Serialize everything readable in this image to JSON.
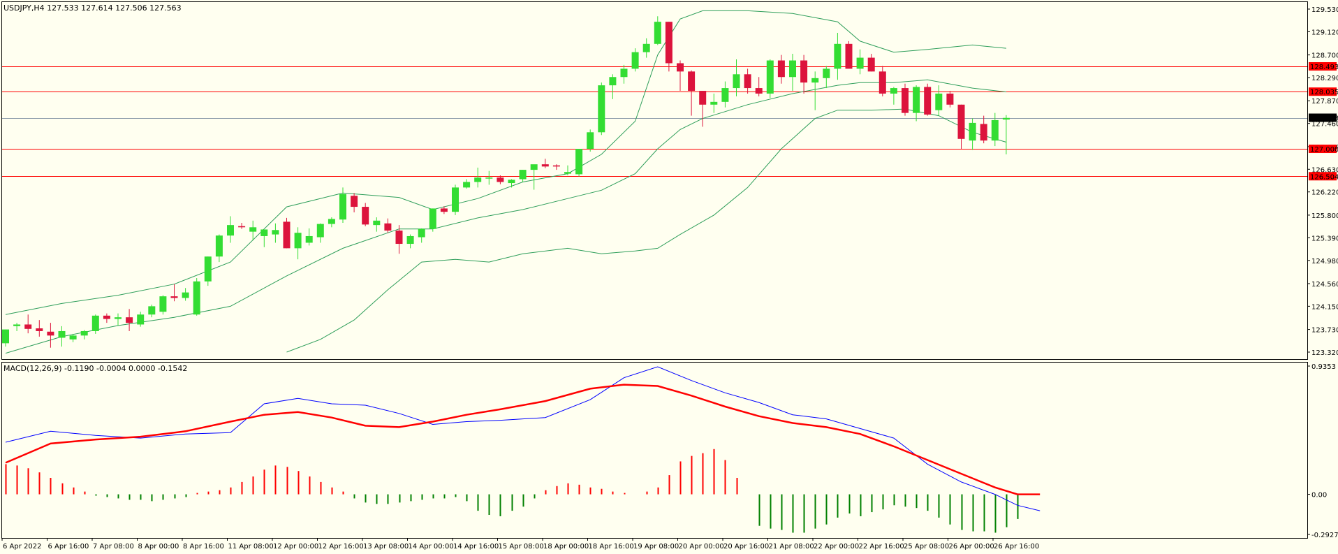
{
  "header": {
    "title": "USDJPY,H4  127.533 127.614 127.506 127.563"
  },
  "macd_header": {
    "title": "MACD(12,26,9) -0.1190 -0.0004 0.0000 -0.1542"
  },
  "colors": {
    "background": "#fffff0",
    "bull_candle": "#33dd33",
    "bear_candle": "#dc143c",
    "bollinger": "#2e9e5a",
    "level_line": "#ff0000",
    "level_tag_bg": "#ff0000",
    "current_tag_bg": "#000000",
    "macd_line": "#0000ff",
    "signal_line": "#ff0000",
    "hist_pos": "#ff0000",
    "hist_neg": "#008000"
  },
  "chart_data": [
    {
      "type": "candlestick",
      "symbol": "USDJPY",
      "timeframe": "H4",
      "ylim": [
        123.32,
        129.53
      ],
      "price_ticks": [
        "129.530",
        "129.120",
        "128.700",
        "128.290",
        "127.870",
        "127.460",
        "127.040",
        "126.630",
        "126.220",
        "125.800",
        "125.390",
        "124.980",
        "124.560",
        "124.150",
        "123.730",
        "123.320"
      ],
      "levels": [
        {
          "price": 128.493,
          "label": "128.493"
        },
        {
          "price": 128.035,
          "label": "128.035"
        },
        {
          "price": 127.0,
          "label": "127.000"
        },
        {
          "price": 126.504,
          "label": "126.504"
        }
      ],
      "current_price": {
        "price": 127.563,
        "label": "127.563"
      },
      "time_labels": [
        "6 Apr 2022",
        "6 Apr 16:00",
        "7 Apr 08:00",
        "8 Apr 00:00",
        "8 Apr 16:00",
        "11 Apr 08:00",
        "12 Apr 00:00",
        "12 Apr 16:00",
        "13 Apr 08:00",
        "14 Apr 00:00",
        "14 Apr 16:00",
        "15 Apr 08:00",
        "18 Apr 00:00",
        "18 Apr 16:00",
        "19 Apr 08:00",
        "20 Apr 00:00",
        "20 Apr 16:00",
        "21 Apr 08:00",
        "22 Apr 00:00",
        "22 Apr 16:00",
        "25 Apr 08:00",
        "26 Apr 00:00",
        "26 Apr 16:00"
      ],
      "candles": [
        [
          123.48,
          123.73,
          123.42,
          123.73
        ],
        [
          123.79,
          123.85,
          123.7,
          123.82
        ],
        [
          123.82,
          124.0,
          123.66,
          123.74
        ],
        [
          123.75,
          123.9,
          123.6,
          123.7
        ],
        [
          123.69,
          123.85,
          123.4,
          123.62
        ],
        [
          123.58,
          123.79,
          123.42,
          123.7
        ],
        [
          123.55,
          123.65,
          123.5,
          123.62
        ],
        [
          123.62,
          123.72,
          123.55,
          123.7
        ],
        [
          123.7,
          124.0,
          123.65,
          123.98
        ],
        [
          123.98,
          124.02,
          123.85,
          123.92
        ],
        [
          123.92,
          124.02,
          123.8,
          123.95
        ],
        [
          123.95,
          124.1,
          123.7,
          123.85
        ],
        [
          123.82,
          124.05,
          123.78,
          124.0
        ],
        [
          124.0,
          124.18,
          123.95,
          124.15
        ],
        [
          124.05,
          124.35,
          124.0,
          124.33
        ],
        [
          124.33,
          124.55,
          124.24,
          124.3
        ],
        [
          124.3,
          124.48,
          124.25,
          124.4
        ],
        [
          124.0,
          124.66,
          123.98,
          124.6
        ],
        [
          124.6,
          125.05,
          124.52,
          125.05
        ],
        [
          125.05,
          125.45,
          124.95,
          125.43
        ],
        [
          125.43,
          125.78,
          125.3,
          125.62
        ],
        [
          125.6,
          125.66,
          125.55,
          125.58
        ],
        [
          125.5,
          125.7,
          125.35,
          125.58
        ],
        [
          125.42,
          125.54,
          125.22,
          125.54
        ],
        [
          125.45,
          125.65,
          125.3,
          125.53
        ],
        [
          125.68,
          125.75,
          125.2,
          125.2
        ],
        [
          125.2,
          125.58,
          125.0,
          125.48
        ],
        [
          125.3,
          125.56,
          125.25,
          125.42
        ],
        [
          125.4,
          125.65,
          125.3,
          125.64
        ],
        [
          125.64,
          125.76,
          125.58,
          125.73
        ],
        [
          125.72,
          126.3,
          125.66,
          126.18
        ],
        [
          126.15,
          126.2,
          125.85,
          125.95
        ],
        [
          125.95,
          126.02,
          125.6,
          125.63
        ],
        [
          125.62,
          125.76,
          125.5,
          125.7
        ],
        [
          125.65,
          125.74,
          125.48,
          125.52
        ],
        [
          125.52,
          125.62,
          125.1,
          125.28
        ],
        [
          125.28,
          125.45,
          125.2,
          125.42
        ],
        [
          125.4,
          125.56,
          125.3,
          125.55
        ],
        [
          125.55,
          125.92,
          125.5,
          125.92
        ],
        [
          125.92,
          125.96,
          125.82,
          125.86
        ],
        [
          125.86,
          126.35,
          125.8,
          126.3
        ],
        [
          126.3,
          126.45,
          126.28,
          126.4
        ],
        [
          126.4,
          126.66,
          126.3,
          126.48
        ],
        [
          126.48,
          126.6,
          126.35,
          126.48
        ],
        [
          126.48,
          126.52,
          126.36,
          126.4
        ],
        [
          126.38,
          126.45,
          126.3,
          126.44
        ],
        [
          126.45,
          126.62,
          126.4,
          126.62
        ],
        [
          126.62,
          126.7,
          126.26,
          126.72
        ],
        [
          126.72,
          126.82,
          126.65,
          126.68
        ],
        [
          126.7,
          126.72,
          126.62,
          126.68
        ],
        [
          126.55,
          126.7,
          126.52,
          126.58
        ],
        [
          126.54,
          127.0,
          126.5,
          127.0
        ],
        [
          127.0,
          127.35,
          126.95,
          127.3
        ],
        [
          127.3,
          128.2,
          127.25,
          128.15
        ],
        [
          128.15,
          128.35,
          127.9,
          128.3
        ],
        [
          128.3,
          128.52,
          128.18,
          128.45
        ],
        [
          128.45,
          128.82,
          128.4,
          128.75
        ],
        [
          128.75,
          129.0,
          128.65,
          128.9
        ],
        [
          128.9,
          129.4,
          128.88,
          129.3
        ],
        [
          129.3,
          129.3,
          128.4,
          128.55
        ],
        [
          128.55,
          128.6,
          128.05,
          128.4
        ],
        [
          128.4,
          128.42,
          127.6,
          128.05
        ],
        [
          128.05,
          128.05,
          127.4,
          127.8
        ],
        [
          127.8,
          128.0,
          127.65,
          127.85
        ],
        [
          127.85,
          128.22,
          127.75,
          128.1
        ],
        [
          128.1,
          128.62,
          127.95,
          128.35
        ],
        [
          128.35,
          128.45,
          128.0,
          128.1
        ],
        [
          128.1,
          128.3,
          127.95,
          128.0
        ],
        [
          128.0,
          128.62,
          127.92,
          128.6
        ],
        [
          128.6,
          128.7,
          128.18,
          128.3
        ],
        [
          128.3,
          128.72,
          128.05,
          128.6
        ],
        [
          128.6,
          128.7,
          128.0,
          128.2
        ],
        [
          128.2,
          128.4,
          127.7,
          128.28
        ],
        [
          128.28,
          128.5,
          128.1,
          128.45
        ],
        [
          128.45,
          129.1,
          128.25,
          128.9
        ],
        [
          128.9,
          128.95,
          128.48,
          128.45
        ],
        [
          128.45,
          128.8,
          128.35,
          128.65
        ],
        [
          128.65,
          128.72,
          128.4,
          128.4
        ],
        [
          128.4,
          128.5,
          127.95,
          128.0
        ],
        [
          128.0,
          128.12,
          127.8,
          128.1
        ],
        [
          128.1,
          128.18,
          127.6,
          127.65
        ],
        [
          127.65,
          128.15,
          127.5,
          128.12
        ],
        [
          128.12,
          128.18,
          127.6,
          127.62
        ],
        [
          127.7,
          128.15,
          127.6,
          128.0
        ],
        [
          128.0,
          128.05,
          127.75,
          127.8
        ],
        [
          127.8,
          127.8,
          127.0,
          127.18
        ],
        [
          127.15,
          127.55,
          126.98,
          127.47
        ],
        [
          127.45,
          127.6,
          127.1,
          127.15
        ],
        [
          127.15,
          127.65,
          127.05,
          127.52
        ],
        [
          127.53,
          127.61,
          126.9,
          127.56
        ]
      ],
      "bollinger": {
        "upper": [
          [
            0,
            124.0
          ],
          [
            5,
            124.2
          ],
          [
            10,
            124.35
          ],
          [
            15,
            124.55
          ],
          [
            20,
            124.95
          ],
          [
            25,
            125.95
          ],
          [
            30,
            126.2
          ],
          [
            35,
            126.12
          ],
          [
            38,
            125.9
          ],
          [
            42,
            126.1
          ],
          [
            46,
            126.4
          ],
          [
            50,
            126.55
          ],
          [
            53,
            126.9
          ],
          [
            56,
            127.5
          ],
          [
            58,
            128.7
          ],
          [
            60,
            129.35
          ],
          [
            62,
            129.5
          ],
          [
            66,
            129.5
          ],
          [
            70,
            129.45
          ],
          [
            74,
            129.3
          ],
          [
            76,
            128.95
          ],
          [
            79,
            128.75
          ],
          [
            82,
            128.8
          ],
          [
            86,
            128.88
          ],
          [
            89,
            128.82
          ]
        ],
        "middle": [
          [
            0,
            123.3
          ],
          [
            5,
            123.6
          ],
          [
            10,
            123.8
          ],
          [
            15,
            123.95
          ],
          [
            20,
            124.15
          ],
          [
            25,
            124.7
          ],
          [
            30,
            125.2
          ],
          [
            35,
            125.55
          ],
          [
            38,
            125.55
          ],
          [
            42,
            125.75
          ],
          [
            46,
            125.9
          ],
          [
            50,
            126.1
          ],
          [
            53,
            126.25
          ],
          [
            56,
            126.55
          ],
          [
            58,
            127.0
          ],
          [
            60,
            127.35
          ],
          [
            62,
            127.55
          ],
          [
            66,
            127.8
          ],
          [
            70,
            128.0
          ],
          [
            74,
            128.15
          ],
          [
            76,
            128.2
          ],
          [
            79,
            128.2
          ],
          [
            82,
            128.25
          ],
          [
            86,
            128.1
          ],
          [
            89,
            128.03
          ]
        ],
        "lower": [
          [
            25,
            123.32
          ],
          [
            28,
            123.55
          ],
          [
            31,
            123.9
          ],
          [
            34,
            124.45
          ],
          [
            37,
            124.95
          ],
          [
            40,
            125.0
          ],
          [
            43,
            124.95
          ],
          [
            46,
            125.1
          ],
          [
            50,
            125.2
          ],
          [
            53,
            125.1
          ],
          [
            56,
            125.15
          ],
          [
            58,
            125.2
          ],
          [
            60,
            125.45
          ],
          [
            63,
            125.8
          ],
          [
            66,
            126.3
          ],
          [
            69,
            127.0
          ],
          [
            72,
            127.55
          ],
          [
            74,
            127.7
          ],
          [
            77,
            127.7
          ],
          [
            80,
            127.72
          ],
          [
            83,
            127.6
          ],
          [
            86,
            127.3
          ],
          [
            89,
            127.12
          ]
        ]
      }
    },
    {
      "type": "line",
      "name": "MACD(12,26,9)",
      "ylim": [
        -0.2927,
        0.9353
      ],
      "y_ticks": [
        "0.9353",
        "0.00",
        "-0.2927"
      ],
      "histogram": [
        0.22,
        0.21,
        0.19,
        0.16,
        0.12,
        0.08,
        0.05,
        0.02,
        -0.01,
        -0.02,
        -0.03,
        -0.04,
        -0.04,
        -0.05,
        -0.04,
        -0.03,
        -0.02,
        0.01,
        0.02,
        0.03,
        0.05,
        0.09,
        0.13,
        0.18,
        0.21,
        0.2,
        0.17,
        0.13,
        0.09,
        0.05,
        0.02,
        -0.03,
        -0.06,
        -0.07,
        -0.07,
        -0.06,
        -0.05,
        -0.04,
        -0.03,
        -0.03,
        -0.02,
        -0.05,
        -0.12,
        -0.15,
        -0.16,
        -0.12,
        -0.09,
        -0.03,
        0.03,
        0.06,
        0.08,
        0.07,
        0.05,
        0.04,
        0.02,
        0.01,
        0.0,
        0.02,
        0.05,
        0.14,
        0.24,
        0.28,
        0.3,
        0.33,
        0.25,
        0.12,
        0.0,
        -0.23,
        -0.25,
        -0.26,
        -0.28,
        -0.28,
        -0.25,
        -0.22,
        -0.17,
        -0.14,
        -0.16,
        -0.13,
        -0.11,
        -0.08,
        -0.09,
        -0.1,
        -0.12,
        -0.17,
        -0.22,
        -0.26,
        -0.27,
        -0.27,
        -0.28,
        -0.24,
        -0.18
      ],
      "macd": [
        [
          0,
          0.38
        ],
        [
          4,
          0.46
        ],
        [
          8,
          0.43
        ],
        [
          12,
          0.41
        ],
        [
          16,
          0.44
        ],
        [
          20,
          0.45
        ],
        [
          23,
          0.66
        ],
        [
          26,
          0.7
        ],
        [
          29,
          0.66
        ],
        [
          32,
          0.65
        ],
        [
          35,
          0.59
        ],
        [
          38,
          0.51
        ],
        [
          41,
          0.53
        ],
        [
          44,
          0.54
        ],
        [
          48,
          0.56
        ],
        [
          52,
          0.69
        ],
        [
          55,
          0.85
        ],
        [
          58,
          0.93
        ],
        [
          61,
          0.83
        ],
        [
          64,
          0.74
        ],
        [
          67,
          0.67
        ],
        [
          70,
          0.58
        ],
        [
          73,
          0.55
        ],
        [
          76,
          0.48
        ],
        [
          79,
          0.41
        ],
        [
          82,
          0.22
        ],
        [
          85,
          0.09
        ],
        [
          88,
          0.0
        ],
        [
          90,
          -0.08
        ],
        [
          92,
          -0.12
        ]
      ],
      "signal": [
        [
          0,
          0.23
        ],
        [
          4,
          0.37
        ],
        [
          8,
          0.4
        ],
        [
          12,
          0.42
        ],
        [
          16,
          0.46
        ],
        [
          20,
          0.53
        ],
        [
          23,
          0.58
        ],
        [
          26,
          0.6
        ],
        [
          29,
          0.56
        ],
        [
          32,
          0.5
        ],
        [
          35,
          0.49
        ],
        [
          38,
          0.53
        ],
        [
          41,
          0.58
        ],
        [
          44,
          0.62
        ],
        [
          48,
          0.68
        ],
        [
          52,
          0.77
        ],
        [
          55,
          0.8
        ],
        [
          58,
          0.79
        ],
        [
          61,
          0.72
        ],
        [
          64,
          0.64
        ],
        [
          67,
          0.57
        ],
        [
          70,
          0.52
        ],
        [
          73,
          0.49
        ],
        [
          76,
          0.44
        ],
        [
          79,
          0.35
        ],
        [
          82,
          0.25
        ],
        [
          85,
          0.15
        ],
        [
          88,
          0.05
        ],
        [
          90,
          0.0
        ],
        [
          92,
          0.0
        ]
      ]
    }
  ]
}
